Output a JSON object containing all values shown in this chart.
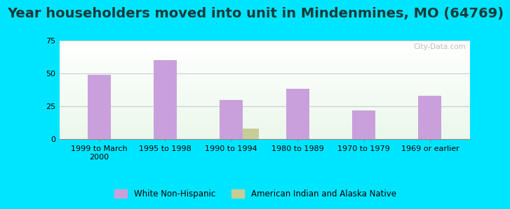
{
  "title": "Year householders moved into unit in Mindenmines, MO (64769)",
  "categories": [
    "1999 to March\n2000",
    "1995 to 1998",
    "1990 to 1994",
    "1980 to 1989",
    "1970 to 1979",
    "1969 or earlier"
  ],
  "white_values": [
    49,
    60,
    30,
    38,
    22,
    33
  ],
  "native_values": [
    0,
    0,
    8,
    0,
    0,
    0
  ],
  "white_color": "#c9a0dc",
  "native_color": "#c8cc96",
  "ylim": [
    0,
    75
  ],
  "yticks": [
    0,
    25,
    50,
    75
  ],
  "bar_width": 0.35,
  "background_outer": "#00e5ff",
  "grid_color": "#cccccc",
  "title_fontsize": 14,
  "title_color": "#1a3a3a",
  "tick_fontsize": 8.0,
  "legend_labels": [
    "White Non-Hispanic",
    "American Indian and Alaska Native"
  ],
  "watermark": "City-Data.com"
}
